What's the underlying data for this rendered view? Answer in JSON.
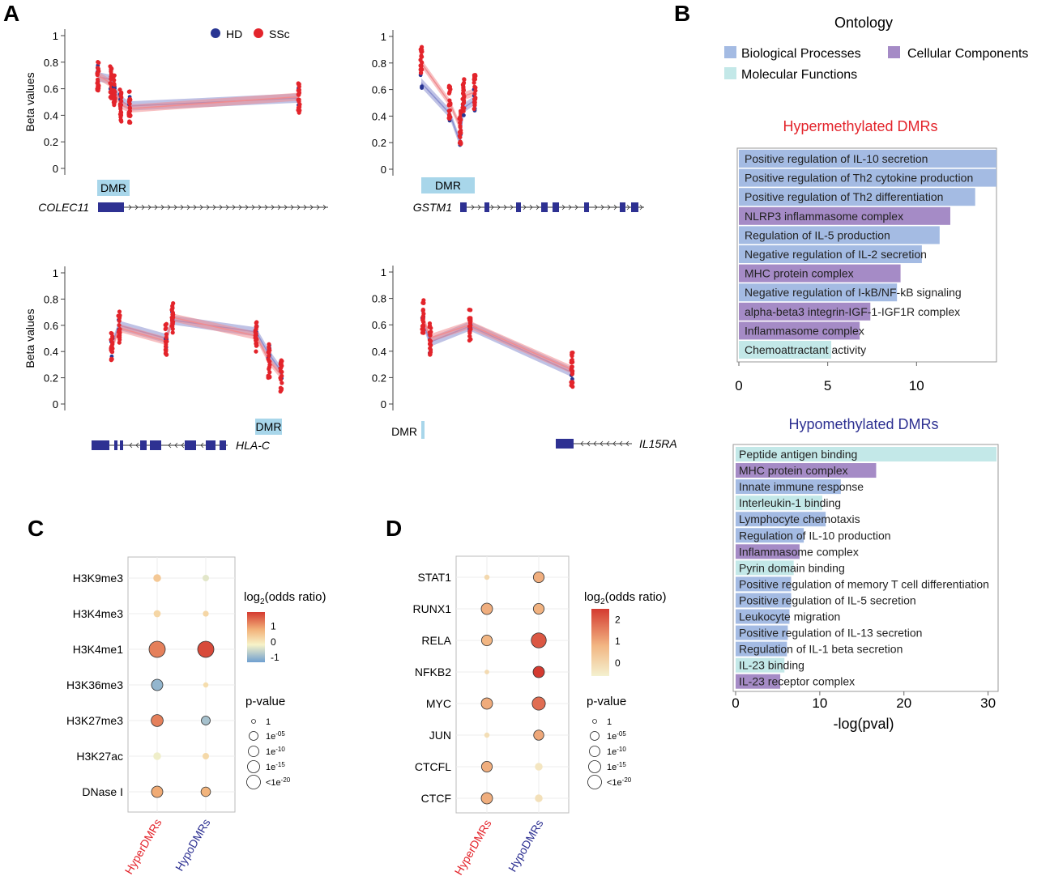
{
  "panels": {
    "A": "A",
    "B": "B",
    "C": "C",
    "D": "D"
  },
  "colors": {
    "hd": "#283593",
    "ssc": "#e3242b",
    "hd_band": "#8a8fd0",
    "ssc_band": "#f08c90",
    "dmr": "#a8d6ea",
    "gene": "#2e3192",
    "biological_processes": "#a4bbe3",
    "cellular_components": "#a58bc6",
    "molecular_functions": "#c3e8e8",
    "hyper_title": "#e3242b",
    "hypo_title": "#2e3192"
  },
  "chart_data": [
    {
      "panel": "A",
      "type": "scatter",
      "legend": [
        {
          "name": "HD",
          "color": "#283593"
        },
        {
          "name": "SSc",
          "color": "#e3242b"
        }
      ],
      "legend_position": "top-right",
      "ylabel": "Beta values",
      "ylim": [
        0,
        1
      ],
      "yticks": [
        "1",
        "0.8",
        "0.6",
        "0.4",
        "0.2",
        "0"
      ],
      "dmr_label": "DMR",
      "subplots": [
        {
          "gene": "COLEC11",
          "show_ylabel": true,
          "sites": [
            {
              "hd": 0.69,
              "ssc": 0.7
            },
            {
              "hd": 0.67,
              "ssc": 0.64
            },
            {
              "hd": 0.6,
              "ssc": 0.58
            },
            {
              "hd": 0.51,
              "ssc": 0.48
            },
            {
              "hd": 0.47,
              "ssc": 0.45
            },
            {
              "hd": 0.53,
              "ssc": 0.54
            }
          ]
        },
        {
          "gene": "GSTM1",
          "show_ylabel": false,
          "sites": [
            {
              "hd": 0.65,
              "ssc": 0.8
            },
            {
              "hd": 0.42,
              "ssc": 0.5
            },
            {
              "hd": 0.2,
              "ssc": 0.32
            },
            {
              "hd": 0.46,
              "ssc": 0.55
            },
            {
              "hd": 0.52,
              "ssc": 0.58
            }
          ]
        },
        {
          "gene": "HLA-C",
          "show_ylabel": true,
          "sites": [
            {
              "hd": 0.45,
              "ssc": 0.42
            },
            {
              "hd": 0.6,
              "ssc": 0.58
            },
            {
              "hd": 0.5,
              "ssc": 0.48
            },
            {
              "hd": 0.64,
              "ssc": 0.66
            },
            {
              "hd": 0.55,
              "ssc": 0.52
            },
            {
              "hd": 0.38,
              "ssc": 0.33
            },
            {
              "hd": 0.25,
              "ssc": 0.22
            }
          ]
        },
        {
          "gene": "IL15RA",
          "show_ylabel": false,
          "sites": [
            {
              "hd": 0.62,
              "ssc": 0.66
            },
            {
              "hd": 0.47,
              "ssc": 0.5
            },
            {
              "hd": 0.59,
              "ssc": 0.6
            },
            {
              "hd": 0.24,
              "ssc": 0.26
            }
          ]
        }
      ]
    },
    {
      "panel": "B",
      "type": "bar",
      "legend_title": "Ontology",
      "legend": [
        {
          "name": "Biological Processes",
          "key": "biological_processes"
        },
        {
          "name": "Cellular Components",
          "key": "cellular_components"
        },
        {
          "name": "Molecular Functions",
          "key": "molecular_functions"
        }
      ],
      "xlabel": "-log(pval)",
      "subcharts": [
        {
          "title": "Hypermethylated DMRs",
          "title_key": "hyper_title",
          "xlim": [
            0,
            14.5
          ],
          "xticks": [
            0,
            5,
            10
          ],
          "bars": [
            {
              "label": "Positive regulation of IL-10 secretion",
              "value": 14.9,
              "cat": "biological_processes"
            },
            {
              "label": "Positive regulation of Th2 cytokine production",
              "value": 14.5,
              "cat": "biological_processes"
            },
            {
              "label": "Positive regulation of Th2 differentiation",
              "value": 13.3,
              "cat": "biological_processes"
            },
            {
              "label": "NLRP3 inflammasome complex",
              "value": 11.9,
              "cat": "cellular_components"
            },
            {
              "label": "Regulation of IL-5 production",
              "value": 11.3,
              "cat": "biological_processes"
            },
            {
              "label": "Negative regulation of IL-2 secretion",
              "value": 10.3,
              "cat": "biological_processes"
            },
            {
              "label": "MHC protein complex",
              "value": 9.1,
              "cat": "cellular_components"
            },
            {
              "label": "Negative regulation of I-kB/NF-kB signaling",
              "value": 8.9,
              "cat": "biological_processes"
            },
            {
              "label": "alpha-beta3 integrin-IGF-1-IGF1R complex",
              "value": 7.4,
              "cat": "cellular_components"
            },
            {
              "label": "Inflammasome complex",
              "value": 6.8,
              "cat": "cellular_components"
            },
            {
              "label": "Chemoattractant activity",
              "value": 5.2,
              "cat": "molecular_functions"
            }
          ]
        },
        {
          "title": "Hypomethylated DMRs",
          "title_key": "hypo_title",
          "xlim": [
            0,
            31
          ],
          "xticks": [
            0,
            10,
            20,
            30
          ],
          "bars": [
            {
              "label": "Peptide antigen binding",
              "value": 31.0,
              "cat": "molecular_functions"
            },
            {
              "label": "MHC protein complex",
              "value": 16.7,
              "cat": "cellular_components"
            },
            {
              "label": "Innate immune response",
              "value": 12.5,
              "cat": "biological_processes"
            },
            {
              "label": "Interleukin-1 binding",
              "value": 10.3,
              "cat": "molecular_functions"
            },
            {
              "label": "Lymphocyte chemotaxis",
              "value": 10.7,
              "cat": "biological_processes"
            },
            {
              "label": "Regulation of IL-10 production",
              "value": 8.1,
              "cat": "biological_processes"
            },
            {
              "label": "Inflammasome complex",
              "value": 7.6,
              "cat": "cellular_components"
            },
            {
              "label": "Pyrin domain binding",
              "value": 6.9,
              "cat": "molecular_functions"
            },
            {
              "label": "Positive regulation of memory T cell differentiation",
              "value": 6.6,
              "cat": "biological_processes"
            },
            {
              "label": "Positive regulation of IL-5 secretion",
              "value": 6.6,
              "cat": "biological_processes"
            },
            {
              "label": "Leukocyte migration",
              "value": 6.4,
              "cat": "biological_processes"
            },
            {
              "label": "Positive regulation of IL-13 secretion",
              "value": 6.2,
              "cat": "biological_processes"
            },
            {
              "label": "Regulation of IL-1 beta secretion",
              "value": 6.1,
              "cat": "biological_processes"
            },
            {
              "label": "IL-23 binding",
              "value": 5.8,
              "cat": "molecular_functions"
            },
            {
              "label": "IL-23 receptor complex",
              "value": 5.3,
              "cat": "cellular_components"
            }
          ]
        }
      ]
    },
    {
      "panel": "C",
      "type": "scatter",
      "columns": [
        "HyperDMRs",
        "HypoDMRs"
      ],
      "column_colors": [
        "#e3242b",
        "#2e3192"
      ],
      "rows": [
        "H3K9me3",
        "H3K4me3",
        "H3K4me1",
        "H3K36me3",
        "H3K27me3",
        "H3K27ac",
        "DNase I"
      ],
      "log2_or": [
        [
          0.45,
          -0.35
        ],
        [
          0.25,
          0.25
        ],
        [
          1.25,
          1.75
        ],
        [
          -1.0,
          0.15
        ],
        [
          1.25,
          -0.85
        ],
        [
          -0.25,
          0.2
        ],
        [
          0.85,
          0.75
        ]
      ],
      "size_level": [
        [
          0.3,
          0.2
        ],
        [
          0.25,
          0.15
        ],
        [
          1.0,
          1.0
        ],
        [
          0.6,
          0.1
        ],
        [
          0.65,
          0.4
        ],
        [
          0.3,
          0.2
        ],
        [
          0.6,
          0.45
        ]
      ],
      "colorbar": {
        "title": "log",
        "sub": "2",
        "title_rest": "(odds ratio)",
        "range": [
          -1.3,
          1.9
        ],
        "ticks": [
          "1",
          "0",
          "-1"
        ],
        "tick_values": [
          1,
          0,
          -1
        ]
      },
      "size_legend": {
        "title": "p-value",
        "labels": [
          "1",
          "1e",
          "1e",
          "1e",
          "<1e"
        ],
        "exponents": [
          "",
          "-05",
          "-10",
          "-15",
          "-20"
        ]
      }
    },
    {
      "panel": "D",
      "type": "scatter",
      "columns": [
        "HyperDMRs",
        "HypoDMRs"
      ],
      "column_colors": [
        "#e3242b",
        "#2e3192"
      ],
      "rows": [
        "STAT1",
        "RUNX1",
        "RELA",
        "NFKB2",
        "MYC",
        "JUN",
        "CTCFL",
        "CTCF"
      ],
      "log2_or": [
        [
          0.0,
          0.9
        ],
        [
          0.9,
          0.85
        ],
        [
          0.8,
          2.1
        ],
        [
          -0.05,
          2.5
        ],
        [
          0.95,
          1.8
        ],
        [
          -0.15,
          1.0
        ],
        [
          0.9,
          -0.35
        ],
        [
          0.9,
          -0.2
        ]
      ],
      "size_level": [
        [
          0.1,
          0.55
        ],
        [
          0.6,
          0.55
        ],
        [
          0.55,
          0.9
        ],
        [
          0.05,
          0.6
        ],
        [
          0.6,
          0.75
        ],
        [
          0.1,
          0.5
        ],
        [
          0.55,
          0.3
        ],
        [
          0.6,
          0.3
        ]
      ],
      "colorbar": {
        "title": "log",
        "sub": "2",
        "title_rest": "(odds ratio)",
        "range": [
          -0.6,
          2.5
        ],
        "ticks": [
          "2",
          "1",
          "0"
        ],
        "tick_values": [
          2,
          1,
          0
        ]
      },
      "size_legend": {
        "title": "p-value",
        "labels": [
          "1",
          "1e",
          "1e",
          "1e",
          "<1e"
        ],
        "exponents": [
          "",
          "-05",
          "-10",
          "-15",
          "-20"
        ]
      }
    }
  ]
}
